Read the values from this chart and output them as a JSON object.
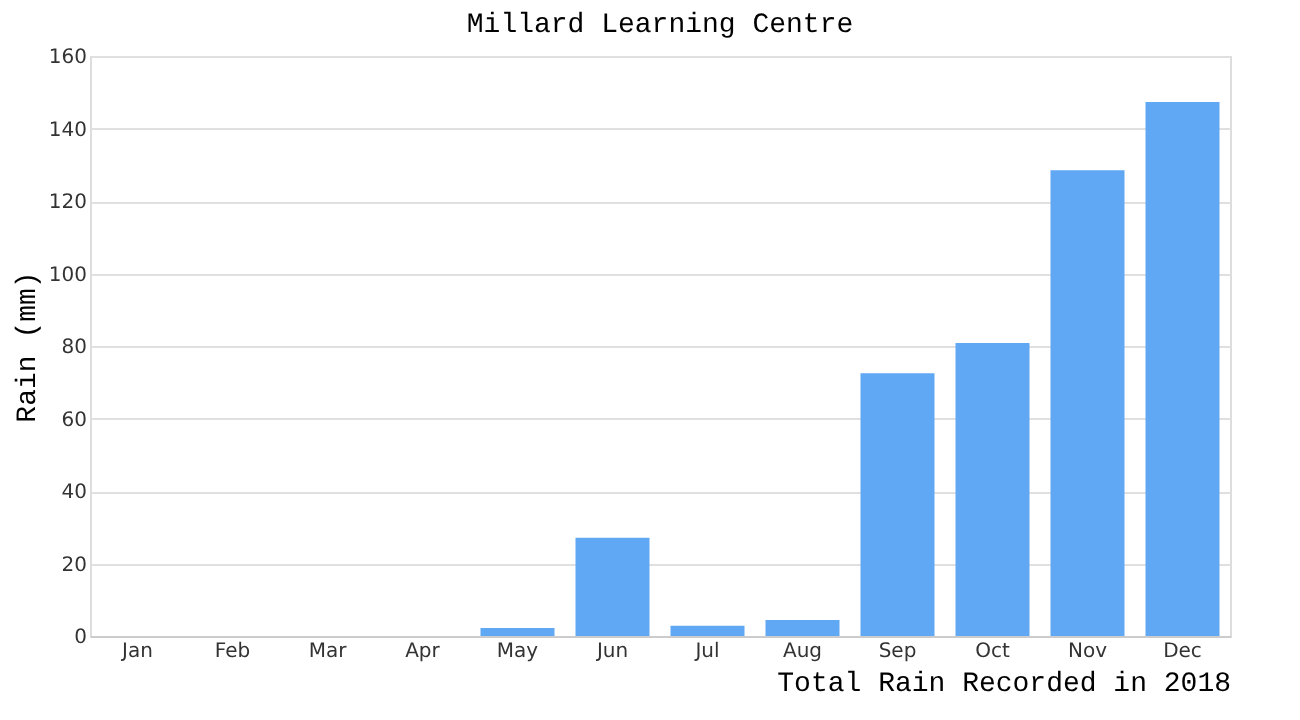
{
  "chart_data": {
    "type": "bar",
    "title": "Millard Learning Centre",
    "xlabel": "Total Rain Recorded in 2018",
    "ylabel": "Rain (mm)",
    "categories": [
      "Jan",
      "Feb",
      "Mar",
      "Apr",
      "May",
      "Jun",
      "Jul",
      "Aug",
      "Sep",
      "Oct",
      "Nov",
      "Dec"
    ],
    "values": [
      0,
      0,
      0,
      0,
      2.2,
      27.1,
      2.8,
      4.4,
      72.5,
      80.8,
      128.5,
      147.3
    ],
    "color": "#60a8f4",
    "ylim": [
      0,
      160
    ],
    "yticks": [
      0,
      20,
      40,
      60,
      80,
      100,
      120,
      140,
      160
    ],
    "grid": "y"
  }
}
